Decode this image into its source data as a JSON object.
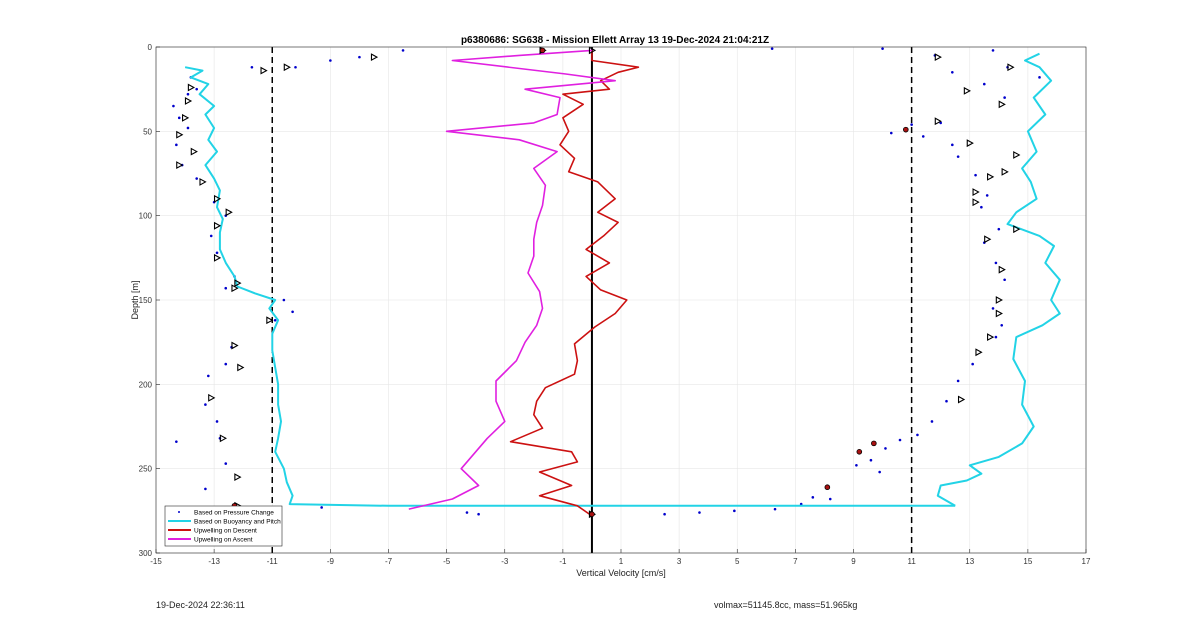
{
  "chart_data": {
    "type": "line",
    "title": "p6380686: SG638 - Mission Ellett Array 13 19-Dec-2024 21:04:21Z",
    "xlabel": "Vertical Velocity [cm/s]",
    "ylabel": "Depth [m]",
    "xlim": [
      -15,
      17
    ],
    "ylim": [
      0,
      300
    ],
    "y_reversed": true,
    "xticks": [
      -15,
      -13,
      -11,
      -9,
      -7,
      -5,
      -3,
      -1,
      1,
      3,
      5,
      7,
      9,
      11,
      13,
      15,
      17
    ],
    "yticks": [
      0,
      50,
      100,
      150,
      200,
      250,
      300
    ],
    "grid": true,
    "legend_position": "bottom-left",
    "reference_lines": [
      {
        "x": -11,
        "style": "dashed",
        "color": "#000000"
      },
      {
        "x": 11,
        "style": "dashed",
        "color": "#000000"
      },
      {
        "x": 0,
        "style": "solid",
        "color": "#000000"
      }
    ],
    "series": [
      {
        "name": "Based on Pressure Change",
        "style": "points",
        "color": "#0000cc",
        "points": [
          [
            -14.4,
            35
          ],
          [
            -14.2,
            42
          ],
          [
            -13.9,
            48
          ],
          [
            -14.3,
            58
          ],
          [
            -14.1,
            70
          ],
          [
            -13.6,
            78
          ],
          [
            -13.0,
            92
          ],
          [
            -12.6,
            100
          ],
          [
            -13.1,
            112
          ],
          [
            -12.9,
            122
          ],
          [
            -12.3,
            136
          ],
          [
            -12.6,
            143
          ],
          [
            -10.6,
            150
          ],
          [
            -10.3,
            157
          ],
          [
            -10.9,
            162
          ],
          [
            -12.4,
            178
          ],
          [
            -12.6,
            188
          ],
          [
            -13.2,
            195
          ],
          [
            -13.3,
            212
          ],
          [
            -12.9,
            222
          ],
          [
            -12.8,
            232
          ],
          [
            -14.3,
            234
          ],
          [
            -12.6,
            247
          ],
          [
            -13.3,
            262
          ],
          [
            -12.3,
            272
          ],
          [
            -13.8,
            18
          ],
          [
            -13.6,
            25
          ],
          [
            -13.9,
            28
          ],
          [
            -8.0,
            6
          ],
          [
            -9.0,
            8
          ],
          [
            -11.7,
            12
          ],
          [
            -10.2,
            12
          ],
          [
            -6.5,
            2
          ],
          [
            -4.3,
            276
          ],
          [
            -9.3,
            273
          ],
          [
            -3.9,
            277
          ],
          [
            2.5,
            277
          ],
          [
            3.7,
            276
          ],
          [
            4.9,
            275
          ],
          [
            6.3,
            274
          ],
          [
            7.2,
            271
          ],
          [
            7.6,
            267
          ],
          [
            8.2,
            268
          ],
          [
            9.6,
            245
          ],
          [
            9.9,
            252
          ],
          [
            10.1,
            238
          ],
          [
            10.6,
            233
          ],
          [
            9.1,
            248
          ],
          [
            10.3,
            51
          ],
          [
            11.0,
            46
          ],
          [
            11.4,
            53
          ],
          [
            12.0,
            45
          ],
          [
            12.6,
            65
          ],
          [
            12.4,
            58
          ],
          [
            13.2,
            76
          ],
          [
            13.6,
            88
          ],
          [
            13.4,
            95
          ],
          [
            14.0,
            108
          ],
          [
            13.5,
            116
          ],
          [
            13.9,
            128
          ],
          [
            14.2,
            138
          ],
          [
            13.8,
            155
          ],
          [
            14.1,
            165
          ],
          [
            13.9,
            172
          ],
          [
            13.1,
            188
          ],
          [
            12.6,
            198
          ],
          [
            12.2,
            210
          ],
          [
            11.7,
            222
          ],
          [
            11.2,
            230
          ],
          [
            11.8,
            5
          ],
          [
            12.4,
            15
          ],
          [
            13.8,
            2
          ],
          [
            14.3,
            12
          ],
          [
            15.4,
            18
          ],
          [
            14.2,
            30
          ],
          [
            13.5,
            22
          ],
          [
            10.0,
            1
          ],
          [
            6.2,
            1
          ]
        ]
      },
      {
        "name": "Based on Buoyancy and Pitch",
        "style": "line",
        "color": "#22d3e6",
        "segments": [
          {
            "points": [
              [
                -14.0,
                12
              ],
              [
                -13.4,
                14
              ],
              [
                -13.8,
                18
              ],
              [
                -13.2,
                22
              ],
              [
                -13.5,
                28
              ],
              [
                -13.0,
                35
              ],
              [
                -13.3,
                40
              ],
              [
                -13.0,
                48
              ],
              [
                -13.2,
                55
              ],
              [
                -12.9,
                62
              ],
              [
                -13.3,
                70
              ],
              [
                -13.0,
                78
              ],
              [
                -12.8,
                85
              ],
              [
                -12.9,
                95
              ],
              [
                -12.7,
                102
              ],
              [
                -12.8,
                110
              ],
              [
                -12.8,
                120
              ],
              [
                -12.6,
                128
              ],
              [
                -12.3,
                136
              ],
              [
                -12.2,
                142
              ],
              [
                -11.6,
                146
              ],
              [
                -10.9,
                150
              ],
              [
                -11.1,
                155
              ],
              [
                -10.8,
                162
              ],
              [
                -11.0,
                170
              ],
              [
                -11.0,
                180
              ],
              [
                -10.9,
                190
              ],
              [
                -10.8,
                200
              ],
              [
                -10.8,
                212
              ],
              [
                -10.7,
                222
              ],
              [
                -10.8,
                232
              ],
              [
                -10.9,
                240
              ],
              [
                -10.6,
                250
              ],
              [
                -10.5,
                258
              ],
              [
                -10.3,
                266
              ],
              [
                -10.4,
                271
              ],
              [
                -7.0,
                272
              ],
              [
                0.0,
                272
              ],
              [
                6.0,
                272
              ],
              [
                12.5,
                272
              ]
            ]
          },
          {
            "points": [
              [
                12.5,
                272
              ],
              [
                11.9,
                266
              ],
              [
                12.0,
                260
              ],
              [
                12.9,
                257
              ],
              [
                13.4,
                253
              ],
              [
                13.0,
                248
              ],
              [
                14.0,
                243
              ],
              [
                14.8,
                235
              ],
              [
                15.2,
                225
              ],
              [
                14.8,
                212
              ],
              [
                14.9,
                198
              ],
              [
                14.5,
                185
              ],
              [
                14.6,
                172
              ],
              [
                15.5,
                165
              ],
              [
                16.1,
                158
              ],
              [
                15.8,
                150
              ],
              [
                16.1,
                138
              ],
              [
                15.6,
                128
              ],
              [
                15.9,
                118
              ],
              [
                15.4,
                112
              ],
              [
                14.3,
                105
              ],
              [
                14.6,
                98
              ],
              [
                15.3,
                90
              ],
              [
                15.1,
                80
              ],
              [
                14.8,
                72
              ],
              [
                15.3,
                62
              ],
              [
                15.0,
                50
              ],
              [
                15.6,
                40
              ],
              [
                15.2,
                30
              ],
              [
                15.8,
                20
              ],
              [
                15.4,
                12
              ],
              [
                14.9,
                8
              ],
              [
                15.4,
                4
              ]
            ]
          }
        ]
      },
      {
        "name": "Upwelling on Descent",
        "style": "line",
        "color": "#cc1111",
        "points": [
          [
            0.0,
            2
          ],
          [
            0.0,
            8
          ],
          [
            1.6,
            12
          ],
          [
            0.9,
            15
          ],
          [
            0.3,
            20
          ],
          [
            0.6,
            25
          ],
          [
            -1.0,
            28
          ],
          [
            -0.3,
            34
          ],
          [
            -1.0,
            42
          ],
          [
            -0.8,
            50
          ],
          [
            -1.1,
            58
          ],
          [
            -0.6,
            66
          ],
          [
            -0.8,
            74
          ],
          [
            0.2,
            80
          ],
          [
            0.8,
            90
          ],
          [
            0.2,
            98
          ],
          [
            0.9,
            104
          ],
          [
            0.4,
            112
          ],
          [
            -0.2,
            120
          ],
          [
            0.6,
            128
          ],
          [
            -0.2,
            136
          ],
          [
            0.3,
            144
          ],
          [
            1.2,
            150
          ],
          [
            0.8,
            158
          ],
          [
            0.1,
            166
          ],
          [
            -0.6,
            176
          ],
          [
            -0.5,
            186
          ],
          [
            -0.6,
            194
          ],
          [
            -1.6,
            202
          ],
          [
            -1.9,
            210
          ],
          [
            -2.0,
            218
          ],
          [
            -1.7,
            226
          ],
          [
            -2.8,
            234
          ],
          [
            -0.7,
            240
          ],
          [
            -0.5,
            246
          ],
          [
            -1.8,
            252
          ],
          [
            -0.7,
            260
          ],
          [
            -1.8,
            266
          ],
          [
            -0.5,
            272
          ],
          [
            0.0,
            278
          ]
        ]
      },
      {
        "name": "Upwelling on Ascent",
        "style": "line",
        "color": "#e020e0",
        "points": [
          [
            -6.3,
            274
          ],
          [
            -4.8,
            268
          ],
          [
            -3.9,
            260
          ],
          [
            -4.5,
            250
          ],
          [
            -4.0,
            240
          ],
          [
            -3.6,
            232
          ],
          [
            -3.0,
            222
          ],
          [
            -3.3,
            210
          ],
          [
            -3.3,
            198
          ],
          [
            -2.6,
            186
          ],
          [
            -2.3,
            175
          ],
          [
            -1.9,
            165
          ],
          [
            -1.7,
            155
          ],
          [
            -1.8,
            145
          ],
          [
            -2.2,
            134
          ],
          [
            -2.0,
            124
          ],
          [
            -2.0,
            114
          ],
          [
            -1.9,
            104
          ],
          [
            -1.7,
            94
          ],
          [
            -1.6,
            82
          ],
          [
            -2.0,
            72
          ],
          [
            -1.2,
            62
          ],
          [
            -2.5,
            55
          ],
          [
            -5.0,
            50
          ],
          [
            -2.0,
            45
          ],
          [
            -1.2,
            40
          ],
          [
            -1.1,
            30
          ],
          [
            -2.3,
            25
          ],
          [
            0.8,
            20
          ],
          [
            -0.9,
            16
          ],
          [
            -4.8,
            8
          ],
          [
            -2.5,
            5
          ],
          [
            0.0,
            2
          ]
        ]
      }
    ],
    "markers": {
      "triangles": [
        [
          -7.5,
          6
        ],
        [
          -11.3,
          14
        ],
        [
          -10.5,
          12
        ],
        [
          -1.7,
          2
        ],
        [
          0.0,
          2
        ],
        [
          -13.8,
          24
        ],
        [
          -13.9,
          32
        ],
        [
          -14.0,
          42
        ],
        [
          -14.2,
          52
        ],
        [
          -13.7,
          62
        ],
        [
          -14.2,
          70
        ],
        [
          -13.4,
          80
        ],
        [
          -12.9,
          90
        ],
        [
          -12.5,
          98
        ],
        [
          -12.9,
          106
        ],
        [
          -12.9,
          125
        ],
        [
          -12.2,
          140
        ],
        [
          -12.3,
          143
        ],
        [
          -11.1,
          162
        ],
        [
          -12.3,
          177
        ],
        [
          -12.1,
          190
        ],
        [
          -13.1,
          208
        ],
        [
          -12.7,
          232
        ],
        [
          -12.2,
          255
        ],
        [
          -12.2,
          272
        ],
        [
          0.0,
          277
        ],
        [
          11.9,
          6
        ],
        [
          14.4,
          12
        ],
        [
          12.9,
          26
        ],
        [
          14.1,
          34
        ],
        [
          11.9,
          44
        ],
        [
          13.0,
          57
        ],
        [
          14.6,
          64
        ],
        [
          14.2,
          74
        ],
        [
          13.7,
          77
        ],
        [
          13.2,
          86
        ],
        [
          13.2,
          92
        ],
        [
          14.6,
          108
        ],
        [
          13.6,
          114
        ],
        [
          14.1,
          132
        ],
        [
          14.0,
          150
        ],
        [
          14.0,
          158
        ],
        [
          13.7,
          172
        ],
        [
          13.3,
          181
        ],
        [
          12.7,
          209
        ]
      ],
      "red_dots": [
        [
          10.8,
          49
        ],
        [
          9.7,
          235
        ],
        [
          9.2,
          240
        ],
        [
          8.1,
          261
        ],
        [
          -12.3,
          272
        ],
        [
          0.0,
          277
        ],
        [
          -1.7,
          2
        ]
      ]
    }
  },
  "footer": {
    "left": "19-Dec-2024 22:36:11",
    "right": "volmax=51145.8cc, mass=51.965kg"
  }
}
